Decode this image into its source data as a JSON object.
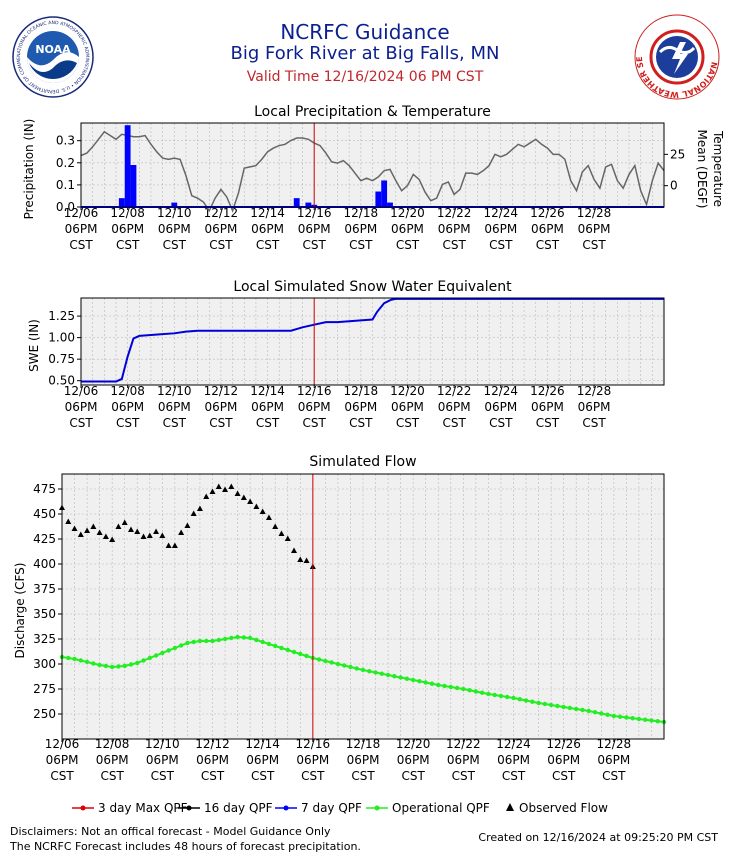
{
  "header": {
    "title": "NCRFC Guidance",
    "subtitle": "Big Fork River at Big Falls, MN",
    "valid_time": "Valid Time 12/16/2024 06 PM CST"
  },
  "logos": {
    "noaa_icon": "noaa-logo-icon",
    "noaa_text": "NOAA",
    "noaa_ring_text": "NATIONAL OCEANIC AND ATMOSPHERIC ADMINISTRATION • U.S. DEPARTMENT OF COMMERCE",
    "nws_icon": "nws-logo-icon",
    "nws_ring_text": "NATIONAL WEATHER SERVICE"
  },
  "colors": {
    "title": "#0b1f8f",
    "valid_time": "#c0282d",
    "precip": "#0000ff",
    "temperature": "#666666",
    "swe": "#0000dd",
    "operational_qpf": "#22ee22",
    "observed": "#000000",
    "current_time_line": "#cc0000",
    "plot_background": "#f0f0f0"
  },
  "x_ticks": [
    "12/06",
    "12/08",
    "12/10",
    "12/12",
    "12/14",
    "12/16",
    "12/18",
    "12/20",
    "12/22",
    "12/24",
    "12/26",
    "12/28"
  ],
  "x_tick_line2": "06PM",
  "x_tick_line3": "CST",
  "chart_data": [
    {
      "type": "bar",
      "title": "Local Precipitation & Temperature",
      "ylabel": "Precipitation (IN)",
      "ylabel2": "Temperature Mean (DEGF)",
      "x_start": "12/06 06PM",
      "x_unit": "days",
      "x_range": [
        0,
        25
      ],
      "ylim": [
        0,
        0.38
      ],
      "yticks": [
        0.0,
        0.1,
        0.2,
        0.3
      ],
      "ylim2": [
        -17,
        50
      ],
      "yticks2": [
        0,
        25
      ],
      "current_time": 10,
      "grid": true,
      "precip": {
        "x": [
          1.75,
          2.0,
          2.25,
          4.0,
          9.25,
          9.75,
          10.0,
          12.75,
          13.0,
          13.25
        ],
        "values": [
          0.04,
          0.37,
          0.19,
          0.02,
          0.04,
          0.02,
          0.01,
          0.07,
          0.12,
          0.02
        ]
      },
      "temperature": {
        "x": [
          0,
          0.25,
          0.5,
          0.75,
          1,
          1.25,
          1.5,
          1.75,
          2,
          2.25,
          2.5,
          2.75,
          3,
          3.25,
          3.5,
          3.75,
          4,
          4.25,
          4.5,
          4.75,
          5,
          5.25,
          5.5,
          5.75,
          6,
          6.25,
          6.5,
          6.75,
          7,
          7.25,
          7.5,
          7.75,
          8,
          8.25,
          8.5,
          8.75,
          9,
          9.25,
          9.5,
          9.75,
          10,
          10.25,
          10.5,
          10.75,
          11,
          11.25,
          11.5,
          11.75,
          12,
          12.25,
          12.5,
          12.75,
          13,
          13.25,
          13.5,
          13.75,
          14,
          14.25,
          14.5,
          14.75,
          15,
          15.25,
          15.5,
          15.75,
          16,
          16.25,
          16.5,
          16.75,
          17,
          17.25,
          17.5,
          17.75,
          18,
          18.25,
          18.5,
          18.75,
          19,
          19.25,
          19.5,
          19.75,
          20,
          20.25,
          20.5,
          20.75,
          21,
          21.25,
          21.5,
          21.75,
          22,
          22.25,
          22.5,
          22.75,
          23,
          23.25,
          23.5,
          23.75,
          24,
          24.25,
          24.5,
          24.75,
          25
        ],
        "values": [
          24,
          26,
          31,
          37,
          43,
          40,
          37,
          41,
          40,
          39,
          39,
          40,
          33,
          27,
          22,
          21,
          22,
          21,
          8,
          -8,
          -10,
          -13,
          -20,
          -10,
          -3,
          -9,
          -20,
          -6,
          14,
          15,
          16,
          21,
          27,
          30,
          32,
          33,
          36,
          38,
          38,
          37,
          34,
          32,
          26,
          19,
          18,
          20,
          16,
          10,
          4,
          6,
          4,
          7,
          12,
          13,
          4,
          -4,
          0,
          9,
          5,
          -5,
          -12,
          -10,
          1,
          3,
          -7,
          -3,
          10,
          10,
          9,
          12,
          16,
          25,
          23,
          25,
          29,
          33,
          31,
          34,
          37,
          33,
          30,
          25,
          25,
          21,
          4,
          -4,
          11,
          16,
          5,
          -2,
          15,
          17,
          4,
          -2,
          9,
          16,
          -4,
          -15,
          4,
          18,
          12
        ]
      }
    },
    {
      "type": "line",
      "title": "Local Simulated Snow Water Equivalent",
      "ylabel": "SWE (IN)",
      "x_start": "12/06 06PM",
      "x_unit": "days",
      "x_range": [
        0,
        25
      ],
      "ylim": [
        0.45,
        1.46
      ],
      "yticks": [
        0.5,
        0.75,
        1.0,
        1.25
      ],
      "current_time": 10,
      "grid": true,
      "x": [
        0,
        1.5,
        1.75,
        2.0,
        2.25,
        2.5,
        3.0,
        3.5,
        4.0,
        4.5,
        5.0,
        6.0,
        7.0,
        8.0,
        9.0,
        9.5,
        10.0,
        10.5,
        11.0,
        11.5,
        12.0,
        12.5,
        12.7,
        13.0,
        13.3,
        13.5,
        16.0,
        20.0,
        25.0
      ],
      "values": [
        0.49,
        0.49,
        0.52,
        0.78,
        0.99,
        1.02,
        1.03,
        1.04,
        1.05,
        1.07,
        1.08,
        1.08,
        1.08,
        1.08,
        1.08,
        1.12,
        1.15,
        1.18,
        1.18,
        1.19,
        1.2,
        1.21,
        1.3,
        1.4,
        1.44,
        1.45,
        1.45,
        1.45,
        1.45
      ]
    },
    {
      "type": "line",
      "title": "Simulated Flow",
      "ylabel": "Discharge (CFS)",
      "x_start": "12/06 06PM",
      "x_unit": "days",
      "x_range": [
        0,
        24
      ],
      "ylim": [
        225,
        490
      ],
      "yticks": [
        250,
        275,
        300,
        325,
        350,
        375,
        400,
        425,
        450,
        475
      ],
      "current_time": 10,
      "grid": true,
      "series": [
        {
          "name": "Operational QPF",
          "x": [
            0,
            0.5,
            1,
            1.5,
            2,
            2.5,
            3,
            3.5,
            4,
            4.5,
            5,
            5.5,
            6,
            6.5,
            7,
            7.5,
            8,
            8.5,
            9,
            9.5,
            10,
            11,
            12,
            13,
            14,
            15,
            16,
            17,
            18,
            19,
            20,
            21,
            22,
            23,
            24
          ],
          "values": [
            307,
            305,
            302,
            299,
            297,
            298,
            301,
            306,
            311,
            316,
            321,
            323,
            323,
            325,
            327,
            326,
            322,
            318,
            314,
            310,
            306,
            300,
            294,
            289,
            284,
            279,
            275,
            270,
            266,
            261,
            257,
            253,
            248,
            245,
            242
          ]
        },
        {
          "name": "Observed Flow",
          "x": [
            0,
            0.25,
            0.5,
            0.75,
            1,
            1.25,
            1.5,
            1.75,
            2,
            2.25,
            2.5,
            2.75,
            3,
            3.25,
            3.5,
            3.75,
            4,
            4.25,
            4.5,
            4.75,
            5,
            5.25,
            5.5,
            5.75,
            6,
            6.25,
            6.5,
            6.75,
            7,
            7.25,
            7.5,
            7.75,
            8,
            8.25,
            8.5,
            8.75,
            9,
            9.25,
            9.5,
            9.75,
            10
          ],
          "values": [
            456,
            442,
            435,
            429,
            433,
            437,
            431,
            427,
            424,
            437,
            441,
            434,
            432,
            427,
            428,
            432,
            428,
            418,
            418,
            431,
            438,
            450,
            455,
            467,
            472,
            477,
            474,
            477,
            470,
            466,
            462,
            457,
            452,
            446,
            437,
            430,
            425,
            413,
            404,
            403,
            397
          ]
        }
      ]
    }
  ],
  "legend": {
    "items": [
      "3 day Max QPF",
      "16 day QPF",
      "7 day QPF",
      "Operational QPF",
      "Observed Flow"
    ],
    "colors": [
      "#dd0000",
      "#000000",
      "#0000ff",
      "#22ee22",
      "#000000"
    ]
  },
  "footer": {
    "disclaimer1": "Disclaimers: Not an offical forecast - Model Guidance Only",
    "disclaimer2": "The NCRFC Forecast includes 48 hours of forecast precipitation.",
    "created": "Created on 12/16/2024 at 09:25:20 PM CST"
  }
}
